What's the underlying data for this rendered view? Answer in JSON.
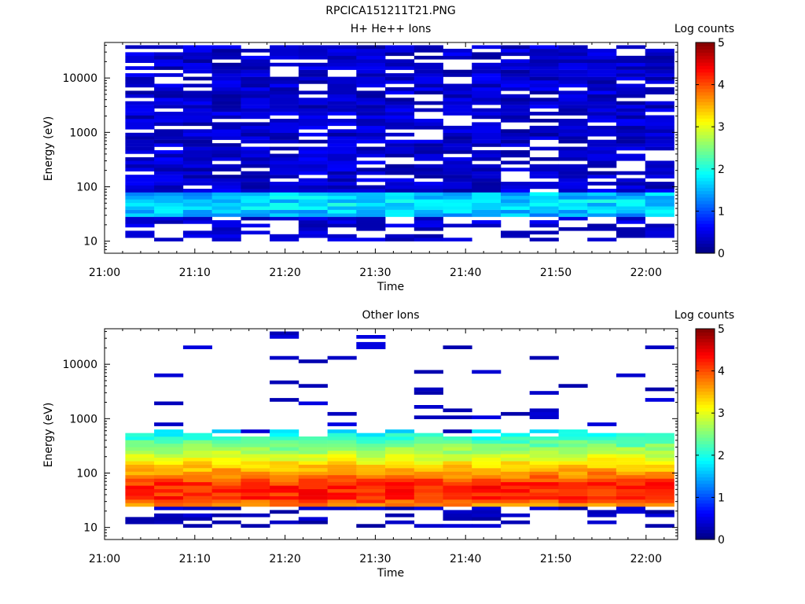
{
  "title": "RPCICA151211T21.PNG",
  "chart_data": [
    {
      "type": "heatmap",
      "title": "H+ He++ Ions",
      "xlabel": "Time",
      "ylabel": "Energy (eV)",
      "x_tick_labels": [
        "21:00",
        "21:10",
        "21:20",
        "21:30",
        "21:40",
        "21:50",
        "22:00"
      ],
      "y_scale": "log",
      "y_tick_values": [
        10,
        100,
        1000,
        10000
      ],
      "y_tick_labels": [
        "10",
        "100",
        "1000",
        "10000"
      ],
      "ylim": [
        6,
        45000
      ],
      "xlim_minutes": [
        0,
        63.5
      ],
      "time_bins": 19,
      "colorbar": {
        "label": "Log counts",
        "min": 0,
        "max": 5,
        "tick_labels": [
          "0",
          "1",
          "2",
          "3",
          "4",
          "5"
        ]
      },
      "profile": {
        "min_energy": 12,
        "core_energy_range": [
          30,
          80
        ],
        "core_peak_log_counts": 1.9,
        "background_log_counts": 0.35,
        "background_max_energy": 40000
      }
    },
    {
      "type": "heatmap",
      "title": "Other Ions",
      "xlabel": "Time",
      "ylabel": "Energy (eV)",
      "x_tick_labels": [
        "21:00",
        "21:10",
        "21:20",
        "21:30",
        "21:40",
        "21:50",
        "22:00"
      ],
      "y_scale": "log",
      "y_tick_values": [
        10,
        100,
        1000,
        10000
      ],
      "y_tick_labels": [
        "10",
        "100",
        "1000",
        "10000"
      ],
      "ylim": [
        6,
        45000
      ],
      "xlim_minutes": [
        0,
        63.5
      ],
      "time_bins": 19,
      "colorbar": {
        "label": "Log counts",
        "min": 0,
        "max": 5,
        "tick_labels": [
          "0",
          "1",
          "2",
          "3",
          "4",
          "5"
        ]
      },
      "profile": {
        "min_energy": 12,
        "core_energy_range": [
          35,
          60
        ],
        "core_peak_log_counts": 4.2,
        "upper_edge_energy": 550,
        "sparse_high_energy_log_counts": 0.2
      }
    }
  ]
}
